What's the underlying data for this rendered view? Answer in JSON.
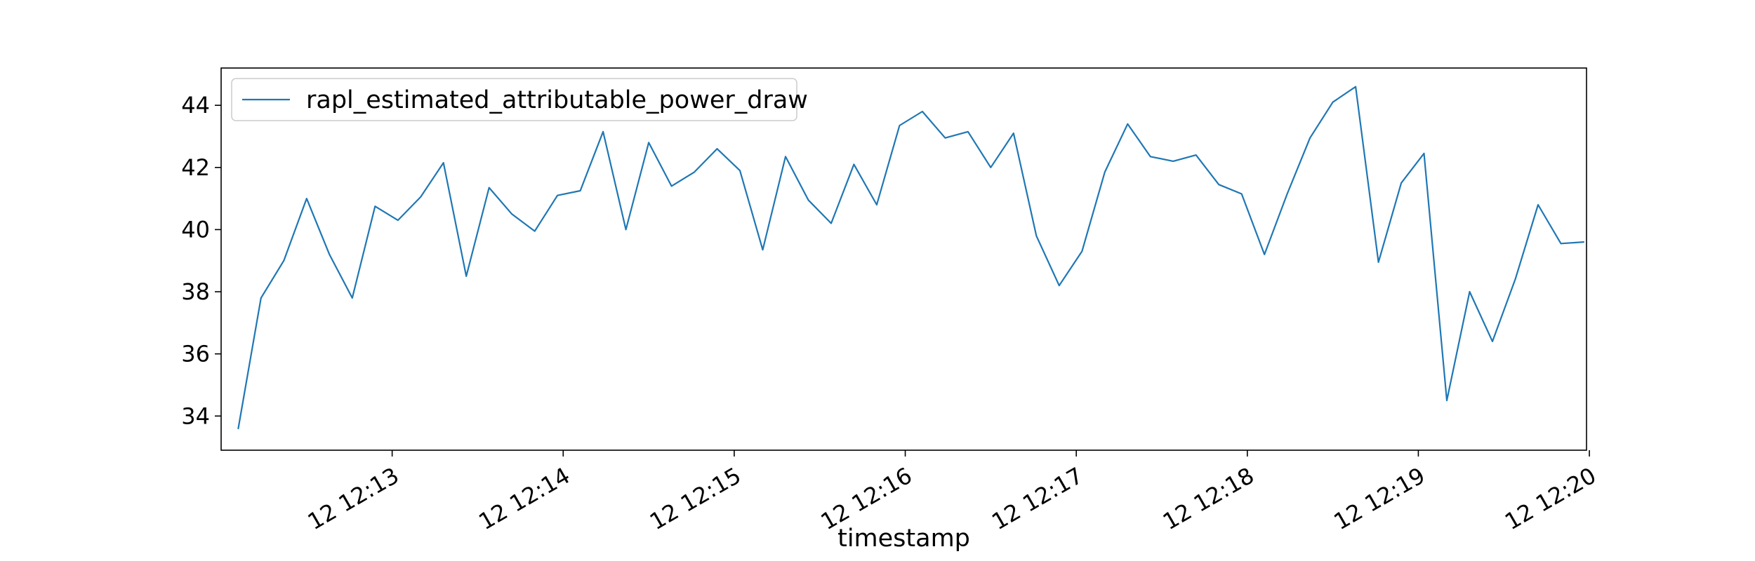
{
  "chart_data": {
    "type": "line",
    "xlabel": "timestamp",
    "ylabel": "",
    "title": "",
    "ylim": [
      32.9,
      45.2
    ],
    "xlim_seconds_after_12_12": [
      0,
      479
    ],
    "yticks": [
      34,
      36,
      38,
      40,
      42,
      44
    ],
    "xticks": [
      {
        "label": "12 12:13",
        "t": "12:13:00"
      },
      {
        "label": "12 12:14",
        "t": "12:14:00"
      },
      {
        "label": "12 12:15",
        "t": "12:15:00"
      },
      {
        "label": "12 12:16",
        "t": "12:16:00"
      },
      {
        "label": "12 12:17",
        "t": "12:17:00"
      },
      {
        "label": "12 12:18",
        "t": "12:18:00"
      },
      {
        "label": "12 12:19",
        "t": "12:19:00"
      },
      {
        "label": "12 12:20",
        "t": "12:20:00"
      }
    ],
    "grid": false,
    "legend_position": "top-left",
    "series": [
      {
        "name": "rapl_estimated_attributable_power_draw",
        "color": "#1f77b4",
        "x": [
          "12:12:06",
          "12:12:14",
          "12:12:22",
          "12:12:30",
          "12:12:38",
          "12:12:46",
          "12:12:54",
          "12:13:02",
          "12:13:10",
          "12:13:18",
          "12:13:26",
          "12:13:34",
          "12:13:42",
          "12:13:50",
          "12:13:58",
          "12:14:06",
          "12:14:14",
          "12:14:22",
          "12:14:30",
          "12:14:38",
          "12:14:46",
          "12:14:54",
          "12:15:02",
          "12:15:10",
          "12:15:18",
          "12:15:26",
          "12:15:34",
          "12:15:42",
          "12:15:50",
          "12:15:58",
          "12:16:06",
          "12:16:14",
          "12:16:22",
          "12:16:30",
          "12:16:38",
          "12:16:46",
          "12:16:54",
          "12:17:02",
          "12:17:10",
          "12:17:18",
          "12:17:26",
          "12:17:34",
          "12:17:42",
          "12:17:50",
          "12:17:58",
          "12:18:06",
          "12:18:14",
          "12:18:22",
          "12:18:30",
          "12:18:38",
          "12:18:46",
          "12:18:54",
          "12:19:02",
          "12:19:10",
          "12:19:18",
          "12:19:26",
          "12:19:34",
          "12:19:42",
          "12:19:50",
          "12:19:58"
        ],
        "y": [
          33.6,
          37.8,
          39.0,
          41.0,
          39.2,
          37.8,
          40.75,
          40.3,
          41.05,
          42.15,
          38.5,
          41.35,
          40.5,
          39.95,
          41.1,
          41.25,
          43.15,
          40.0,
          42.8,
          41.4,
          41.85,
          42.6,
          41.9,
          39.35,
          42.35,
          40.95,
          40.2,
          42.1,
          40.8,
          43.35,
          43.8,
          42.95,
          43.15,
          42.0,
          43.1,
          39.8,
          38.2,
          39.3,
          41.85,
          43.4,
          42.35,
          42.2,
          42.4,
          41.45,
          41.15,
          39.2,
          41.15,
          42.95,
          44.1,
          44.6,
          38.95,
          41.5,
          42.45,
          34.5,
          38.0,
          36.4,
          38.4,
          40.8,
          39.55,
          39.6
        ]
      }
    ]
  }
}
